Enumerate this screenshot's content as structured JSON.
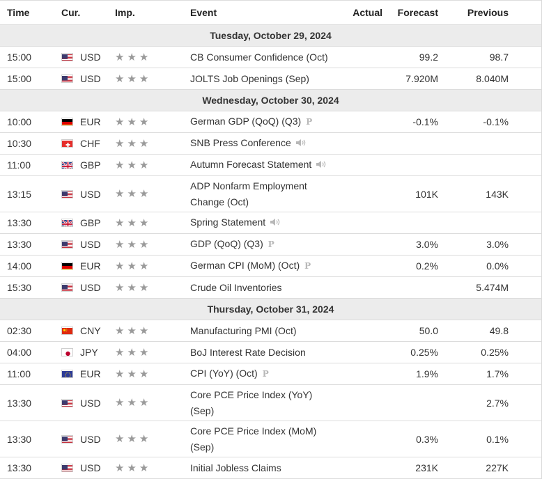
{
  "columns": {
    "time": "Time",
    "cur": "Cur.",
    "imp": "Imp.",
    "event": "Event",
    "actual": "Actual",
    "forecast": "Forecast",
    "previous": "Previous"
  },
  "days": [
    {
      "label": "Tuesday, October 29, 2024",
      "events": [
        {
          "time": "15:00",
          "flag": "us",
          "currency": "USD",
          "event": "CB Consumer Confidence (Oct)",
          "icon": "",
          "actual": "",
          "forecast": "99.2",
          "previous": "98.7"
        },
        {
          "time": "15:00",
          "flag": "us",
          "currency": "USD",
          "event": "JOLTS Job Openings (Sep)",
          "icon": "",
          "actual": "",
          "forecast": "7.920M",
          "previous": "8.040M"
        }
      ]
    },
    {
      "label": "Wednesday, October 30, 2024",
      "events": [
        {
          "time": "10:00",
          "flag": "de",
          "currency": "EUR",
          "event": "German GDP (QoQ) (Q3)",
          "icon": "preliminary-icon",
          "actual": "",
          "forecast": "-0.1%",
          "previous": "-0.1%"
        },
        {
          "time": "10:30",
          "flag": "ch",
          "currency": "CHF",
          "event": "SNB Press Conference",
          "icon": "speaker-icon",
          "actual": "",
          "forecast": "",
          "previous": ""
        },
        {
          "time": "11:00",
          "flag": "gb",
          "currency": "GBP",
          "event": "Autumn Forecast Statement",
          "icon": "speaker-icon",
          "actual": "",
          "forecast": "",
          "previous": ""
        },
        {
          "time": "13:15",
          "flag": "us",
          "currency": "USD",
          "event": "ADP Nonfarm Employment Change (Oct)",
          "icon": "",
          "actual": "",
          "forecast": "101K",
          "previous": "143K",
          "tall": true
        },
        {
          "time": "13:30",
          "flag": "gb",
          "currency": "GBP",
          "event": "Spring Statement",
          "icon": "speaker-icon",
          "actual": "",
          "forecast": "",
          "previous": ""
        },
        {
          "time": "13:30",
          "flag": "us",
          "currency": "USD",
          "event": "GDP (QoQ) (Q3)",
          "icon": "preliminary-icon",
          "actual": "",
          "forecast": "3.0%",
          "previous": "3.0%"
        },
        {
          "time": "14:00",
          "flag": "de",
          "currency": "EUR",
          "event": "German CPI (MoM) (Oct)",
          "icon": "preliminary-icon",
          "actual": "",
          "forecast": "0.2%",
          "previous": "0.0%"
        },
        {
          "time": "15:30",
          "flag": "us",
          "currency": "USD",
          "event": "Crude Oil Inventories",
          "icon": "",
          "actual": "",
          "forecast": "",
          "previous": "5.474M"
        }
      ]
    },
    {
      "label": "Thursday, October 31, 2024",
      "events": [
        {
          "time": "02:30",
          "flag": "cn",
          "currency": "CNY",
          "event": "Manufacturing PMI (Oct)",
          "icon": "",
          "actual": "",
          "forecast": "50.0",
          "previous": "49.8"
        },
        {
          "time": "04:00",
          "flag": "jp",
          "currency": "JPY",
          "event": "BoJ Interest Rate Decision",
          "icon": "",
          "actual": "",
          "forecast": "0.25%",
          "previous": "0.25%"
        },
        {
          "time": "11:00",
          "flag": "eu",
          "currency": "EUR",
          "event": "CPI (YoY) (Oct)",
          "icon": "preliminary-icon",
          "actual": "",
          "forecast": "1.9%",
          "previous": "1.7%"
        },
        {
          "time": "13:30",
          "flag": "us",
          "currency": "USD",
          "event": "Core PCE Price Index (YoY) (Sep)",
          "icon": "",
          "actual": "",
          "forecast": "",
          "previous": "2.7%",
          "tall": true
        },
        {
          "time": "13:30",
          "flag": "us",
          "currency": "USD",
          "event": "Core PCE Price Index (MoM) (Sep)",
          "icon": "",
          "actual": "",
          "forecast": "0.3%",
          "previous": "0.1%",
          "tall": true
        },
        {
          "time": "13:30",
          "flag": "us",
          "currency": "USD",
          "event": "Initial Jobless Claims",
          "icon": "",
          "actual": "",
          "forecast": "231K",
          "previous": "227K"
        }
      ]
    }
  ],
  "importance_stars": 3,
  "preliminary_mark": "P"
}
